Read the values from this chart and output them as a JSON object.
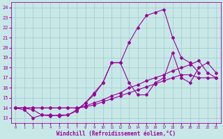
{
  "xlabel": "Windchill (Refroidissement éolien,°C)",
  "bg_color": "#c8e8e8",
  "line_color": "#990099",
  "xlim": [
    -0.5,
    23.5
  ],
  "ylim": [
    12.5,
    24.5
  ],
  "xticks": [
    0,
    1,
    2,
    3,
    4,
    5,
    6,
    7,
    8,
    9,
    10,
    11,
    12,
    13,
    14,
    15,
    16,
    17,
    18,
    19,
    20,
    21,
    22,
    23
  ],
  "yticks": [
    13,
    14,
    15,
    16,
    17,
    18,
    19,
    20,
    21,
    22,
    23,
    24
  ],
  "grid_color": "#a0c8c8",
  "line1_x": [
    0,
    1,
    2,
    3,
    4,
    5,
    6,
    7,
    8,
    9,
    10,
    11,
    12,
    13,
    14,
    15,
    16,
    17,
    18,
    19,
    20,
    21
  ],
  "line1_y": [
    14,
    13.8,
    13.0,
    13.3,
    13.2,
    13.3,
    13.3,
    13.8,
    14.5,
    15.5,
    16.5,
    18.5,
    18.5,
    20.5,
    22.0,
    23.2,
    23.5,
    23.8,
    21.0,
    19.0,
    18.5,
    17.5
  ],
  "line2_x": [
    0,
    1,
    2,
    3,
    4,
    5,
    6,
    7,
    8,
    9,
    10,
    11,
    12,
    13,
    14,
    15,
    16,
    17,
    18,
    19,
    20,
    21,
    22,
    23
  ],
  "line2_y": [
    14,
    14.0,
    13.8,
    13.3,
    13.3,
    13.2,
    13.3,
    13.7,
    14.5,
    15.3,
    16.5,
    18.5,
    18.5,
    16.5,
    15.3,
    15.3,
    16.5,
    17.0,
    19.5,
    17.0,
    16.5,
    18.0,
    18.5,
    17.5
  ],
  "line3_x": [
    0,
    1,
    2,
    3,
    4,
    5,
    6,
    7,
    8,
    9,
    10,
    11,
    12,
    13,
    14,
    15,
    16,
    17,
    18,
    19,
    20,
    21,
    22,
    23
  ],
  "line3_y": [
    14,
    14,
    14,
    14,
    14,
    14,
    14,
    14,
    14.2,
    14.5,
    14.8,
    15.2,
    15.5,
    16.0,
    16.3,
    16.7,
    17.0,
    17.3,
    17.7,
    18.0,
    18.3,
    18.7,
    17.5,
    17.0
  ],
  "line4_x": [
    0,
    1,
    2,
    3,
    4,
    5,
    6,
    7,
    8,
    9,
    10,
    11,
    12,
    13,
    14,
    15,
    16,
    17,
    18,
    19,
    20,
    21,
    22,
    23
  ],
  "line4_y": [
    14,
    14,
    14,
    14,
    14,
    14,
    14,
    14,
    14.1,
    14.3,
    14.6,
    14.9,
    15.2,
    15.5,
    15.8,
    16.1,
    16.4,
    16.7,
    17.0,
    17.3,
    17.3,
    17.0,
    17.0,
    17.0
  ]
}
